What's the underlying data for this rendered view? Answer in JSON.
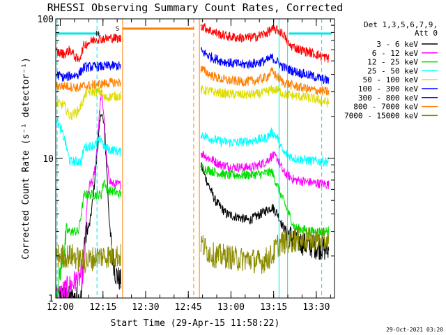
{
  "chart_data": {
    "type": "line",
    "title": "RHESSI Observing Summary Count Rates, Corrected",
    "xlabel": "Start Time (29-Apr-15 11:58:22)",
    "ylabel": "Corrected Count Rate (s⁻¹ detector⁻¹)",
    "y_scale": "log",
    "ylim": [
      1,
      100
    ],
    "xlim_minutes_after_start": [
      0,
      98
    ],
    "x_ticks": [
      {
        "label": "12:00",
        "minute": 1.6
      },
      {
        "label": "12:15",
        "minute": 16.6
      },
      {
        "label": "12:30",
        "minute": 31.6
      },
      {
        "label": "12:45",
        "minute": 46.6
      },
      {
        "label": "13:00",
        "minute": 61.6
      },
      {
        "label": "13:15",
        "minute": 76.6
      },
      {
        "label": "13:30",
        "minute": 91.6
      }
    ],
    "y_ticks": [
      {
        "label": "1",
        "value": 1
      },
      {
        "label": "10",
        "value": 10
      },
      {
        "label": "100",
        "value": 100
      }
    ],
    "grid": false,
    "legend_position": "top-right",
    "legend_header": [
      "Det 1,3,5,6,7,9,",
      "Att 0"
    ],
    "timestamp": "29-Oct-2021 03:20",
    "flags": [
      {
        "label": "N",
        "color": "#00e5e5",
        "segments": [
          [
            0,
            15.5
          ],
          [
            82,
            97
          ]
        ]
      },
      {
        "label": "S",
        "color": "#ff7f00",
        "segments": [
          [
            23.5,
            48.5
          ]
        ]
      }
    ],
    "markers": [
      {
        "minute": 0.5,
        "color": "#00e5e5",
        "style": "dashed"
      },
      {
        "minute": 14.5,
        "color": "#00e5e5",
        "style": "dashed"
      },
      {
        "minute": 23.5,
        "color": "#ff7f00",
        "style": "solid"
      },
      {
        "minute": 48.5,
        "color": "#ff7f00",
        "style": "dashed"
      },
      {
        "minute": 50.5,
        "color": "#ff7f00",
        "style": "solid"
      },
      {
        "minute": 78.5,
        "color": "#00e5e5",
        "style": "solid"
      },
      {
        "minute": 81.5,
        "color": "#00e5e5",
        "style": "solid"
      },
      {
        "minute": 93.5,
        "color": "#00e5e5",
        "style": "dashed"
      }
    ],
    "data_gap_minutes": [
      23.5,
      50.5
    ],
    "series": [
      {
        "name": "3 - 6 keV",
        "color": "#000000",
        "segments": [
          [
            [
              0,
              1
            ],
            [
              9,
              1
            ],
            [
              10,
              2.5
            ],
            [
              11,
              3
            ],
            [
              12,
              3.4
            ],
            [
              13,
              5
            ],
            [
              14,
              8
            ],
            [
              15,
              14
            ],
            [
              16,
              22
            ],
            [
              17,
              17
            ],
            [
              18,
              8
            ],
            [
              19,
              3
            ],
            [
              20,
              2
            ],
            [
              21,
              1.5
            ],
            [
              23,
              1.3
            ]
          ],
          [
            [
              51,
              9
            ],
            [
              53,
              7
            ],
            [
              56,
              5
            ],
            [
              60,
              4
            ],
            [
              64,
              3.8
            ],
            [
              68,
              3.6
            ],
            [
              72,
              4
            ],
            [
              76,
              4.5
            ],
            [
              78,
              4
            ],
            [
              80,
              3.2
            ],
            [
              83,
              2.7
            ],
            [
              88,
              2.4
            ],
            [
              93,
              2.3
            ],
            [
              96,
              2.2
            ]
          ]
        ]
      },
      {
        "name": "6 - 12 keV",
        "color": "#ff00ff",
        "segments": [
          [
            [
              0,
              1
            ],
            [
              10,
              1.5
            ],
            [
              11,
              5
            ],
            [
              12,
              6.5
            ],
            [
              13,
              6.8
            ],
            [
              14,
              9
            ],
            [
              15,
              17
            ],
            [
              16,
              30
            ],
            [
              17,
              20
            ],
            [
              18,
              9
            ],
            [
              19,
              7
            ],
            [
              20,
              6.5
            ],
            [
              23,
              6.5
            ]
          ],
          [
            [
              51,
              11
            ],
            [
              54,
              10
            ],
            [
              58,
              9
            ],
            [
              62,
              8.7
            ],
            [
              66,
              8.6
            ],
            [
              70,
              8.7
            ],
            [
              74,
              9.5
            ],
            [
              76,
              10.5
            ],
            [
              78,
              10
            ],
            [
              80,
              8
            ],
            [
              84,
              7
            ],
            [
              90,
              6.7
            ],
            [
              96,
              6.5
            ]
          ]
        ]
      },
      {
        "name": "12 - 25 keV",
        "color": "#00dd00",
        "segments": [
          [
            [
              0,
              1
            ],
            [
              4,
              3
            ],
            [
              8,
              3
            ],
            [
              10,
              5.5
            ],
            [
              16,
              5.5
            ],
            [
              17,
              7
            ],
            [
              18,
              6
            ],
            [
              23,
              5.5
            ]
          ],
          [
            [
              51,
              8.6
            ],
            [
              56,
              8
            ],
            [
              60,
              7.6
            ],
            [
              66,
              7.6
            ],
            [
              72,
              7.7
            ],
            [
              76,
              8
            ],
            [
              80,
              5
            ],
            [
              84,
              3.2
            ],
            [
              90,
              3
            ],
            [
              96,
              3
            ]
          ]
        ]
      },
      {
        "name": "25 - 50 keV",
        "color": "#00ffff",
        "segments": [
          [
            [
              0,
              20
            ],
            [
              3,
              14
            ],
            [
              5,
              9.5
            ],
            [
              9,
              9.5
            ],
            [
              10,
              12
            ],
            [
              14,
              12.5
            ],
            [
              16,
              14
            ],
            [
              17,
              12
            ],
            [
              23,
              11
            ]
          ],
          [
            [
              51,
              15
            ],
            [
              54,
              14
            ],
            [
              58,
              13.2
            ],
            [
              64,
              13
            ],
            [
              70,
              13.5
            ],
            [
              74,
              14
            ],
            [
              76,
              15.5
            ],
            [
              78,
              14
            ],
            [
              80,
              11
            ],
            [
              84,
              10
            ],
            [
              90,
              9.6
            ],
            [
              96,
              9.5
            ]
          ]
        ]
      },
      {
        "name": "50 - 100 keV",
        "color": "#dddd00",
        "segments": [
          [
            [
              0,
              25
            ],
            [
              3,
              24
            ],
            [
              5,
              20
            ],
            [
              8,
              22
            ],
            [
              11,
              30
            ],
            [
              16,
              30
            ],
            [
              17,
              27
            ],
            [
              20,
              28
            ],
            [
              23,
              28
            ]
          ],
          [
            [
              51,
              31
            ],
            [
              55,
              30
            ],
            [
              60,
              29
            ],
            [
              66,
              28.5
            ],
            [
              72,
              29
            ],
            [
              76,
              31
            ],
            [
              78,
              31
            ],
            [
              80,
              29
            ],
            [
              84,
              28
            ],
            [
              90,
              27
            ],
            [
              96,
              25
            ]
          ]
        ]
      },
      {
        "name": "100 - 300 keV",
        "color": "#0000ff",
        "segments": [
          [
            [
              0,
              40
            ],
            [
              3,
              38
            ],
            [
              5,
              39
            ],
            [
              8,
              40
            ],
            [
              10,
              45
            ],
            [
              20,
              46
            ],
            [
              23,
              46
            ]
          ],
          [
            [
              51,
              59
            ],
            [
              54,
              54
            ],
            [
              58,
              50
            ],
            [
              62,
              48
            ],
            [
              66,
              47
            ],
            [
              70,
              48
            ],
            [
              74,
              50
            ],
            [
              76,
              53
            ],
            [
              78,
              49
            ],
            [
              80,
              45
            ],
            [
              84,
              42
            ],
            [
              90,
              39
            ],
            [
              96,
              36
            ]
          ]
        ]
      },
      {
        "name": "300 - 800 keV",
        "color": "#0000ff",
        "hidden": true,
        "segments": []
      },
      {
        "name": "800 - 7000 keV",
        "color": "#ff7f00",
        "segments": [
          [
            [
              0,
              33
            ],
            [
              4,
              33
            ],
            [
              8,
              32
            ],
            [
              10,
              33
            ],
            [
              20,
              35
            ],
            [
              23,
              35
            ]
          ],
          [
            [
              51,
              44
            ],
            [
              54,
              40
            ],
            [
              58,
              37
            ],
            [
              62,
              36
            ],
            [
              66,
              35.5
            ],
            [
              70,
              36
            ],
            [
              74,
              38
            ],
            [
              76,
              42
            ],
            [
              78,
              38
            ],
            [
              80,
              35
            ],
            [
              84,
              33
            ],
            [
              90,
              31
            ],
            [
              96,
              30
            ]
          ]
        ]
      },
      {
        "name": "7000 - 15000 keV",
        "color": "#8b8b00",
        "segments": [
          [
            [
              0,
              2
            ],
            [
              6,
              2
            ],
            [
              10,
              1.8
            ],
            [
              15,
              2
            ],
            [
              20,
              2
            ],
            [
              23,
              2
            ]
          ],
          [
            [
              51,
              2.5
            ],
            [
              53,
              2.2
            ],
            [
              56,
              2
            ],
            [
              60,
              2
            ],
            [
              64,
              1.9
            ],
            [
              68,
              1.9
            ],
            [
              72,
              1.8
            ],
            [
              76,
              2
            ],
            [
              78,
              2.4
            ],
            [
              80,
              2.5
            ],
            [
              84,
              2.6
            ],
            [
              90,
              2.6
            ],
            [
              96,
              2.6
            ]
          ]
        ]
      },
      {
        "name": "red (top band)",
        "color": "#ff0000",
        "legend": false,
        "segments": [
          [
            [
              0,
              58
            ],
            [
              3,
              56
            ],
            [
              5,
              60
            ],
            [
              8,
              50
            ],
            [
              10,
              65
            ],
            [
              14,
              72
            ],
            [
              18,
              72
            ],
            [
              20,
              73
            ],
            [
              23,
              72
            ]
          ],
          [
            [
              51,
              90
            ],
            [
              54,
              83
            ],
            [
              58,
              77
            ],
            [
              62,
              74
            ],
            [
              66,
              73
            ],
            [
              70,
              74
            ],
            [
              74,
              79
            ],
            [
              76,
              84
            ],
            [
              78,
              83
            ],
            [
              80,
              78
            ],
            [
              82,
              65
            ],
            [
              86,
              60
            ],
            [
              90,
              57
            ],
            [
              96,
              52
            ]
          ]
        ]
      }
    ]
  }
}
